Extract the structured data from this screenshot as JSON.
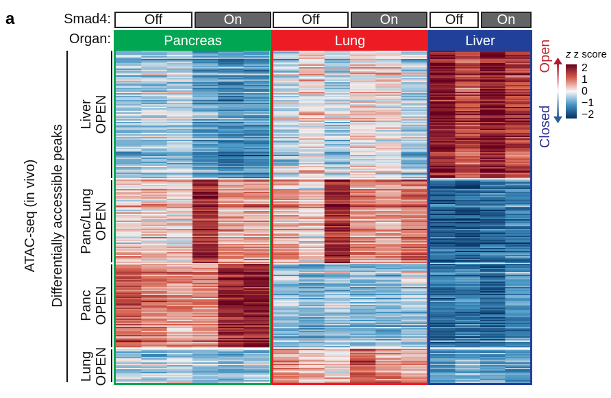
{
  "panel_label": "a",
  "row_header_smad4": "Smad4:",
  "row_header_organ": "Organ:",
  "smad4": [
    {
      "label": "Off",
      "state": "off"
    },
    {
      "label": "On",
      "state": "on"
    },
    {
      "label": "Off",
      "state": "off"
    },
    {
      "label": "On",
      "state": "on"
    },
    {
      "label": "Off",
      "state": "off"
    },
    {
      "label": "On",
      "state": "on"
    }
  ],
  "organs": [
    {
      "label": "Pancreas",
      "color": "#00a651",
      "columns": 6
    },
    {
      "label": "Lung",
      "color": "#ed1c24",
      "columns": 6
    },
    {
      "label": "Liver",
      "color": "#21409a",
      "columns": 4
    }
  ],
  "y_title_outer": "ATAC-seq (in vivo)",
  "y_title_inner": "Differentially accessible peaks",
  "legend": {
    "title": "z score",
    "ticks": [
      "2",
      "1",
      "0",
      "−1",
      "−2"
    ],
    "open_label": "Open",
    "closed_label": "Closed",
    "open_color": "#c1272d",
    "closed_color": "#2e3192"
  },
  "chart_data": {
    "type": "heatmap",
    "zlim": [
      -2,
      2
    ],
    "colormap": "RdBu (blue = -2, white = 0, red = 2)",
    "row_blocks": [
      {
        "line1": "Liver",
        "line2": "OPEN",
        "means": [
          -0.5,
          -0.4,
          -0.3,
          -0.8,
          -1.0,
          -0.9,
          -0.3,
          0.2,
          -0.3,
          0.2,
          0.1,
          -0.3,
          1.8,
          1.3,
          1.8,
          1.4
        ]
      },
      {
        "line1": "Panc/Lung",
        "line2": "OPEN",
        "means": [
          0.2,
          0.3,
          0.2,
          1.5,
          0.6,
          0.6,
          0.5,
          0.3,
          1.5,
          0.7,
          0.6,
          0.9,
          -1.5,
          -1.6,
          -1.4,
          -1.2
        ]
      },
      {
        "line1": "Panc",
        "line2": "OPEN",
        "means": [
          1.0,
          0.8,
          0.6,
          0.7,
          1.6,
          1.7,
          -0.5,
          -0.7,
          -0.5,
          -0.6,
          -0.6,
          -0.4,
          -1.3,
          -1.2,
          -1.4,
          -1.0
        ]
      },
      {
        "line1": "Lung",
        "line2": "OPEN",
        "means": [
          -0.2,
          -0.3,
          -0.2,
          -0.4,
          -0.6,
          -0.4,
          0.8,
          0.5,
          0.3,
          1.2,
          0.7,
          0.6,
          -0.8,
          -0.6,
          -0.8,
          -0.7
        ]
      }
    ]
  }
}
